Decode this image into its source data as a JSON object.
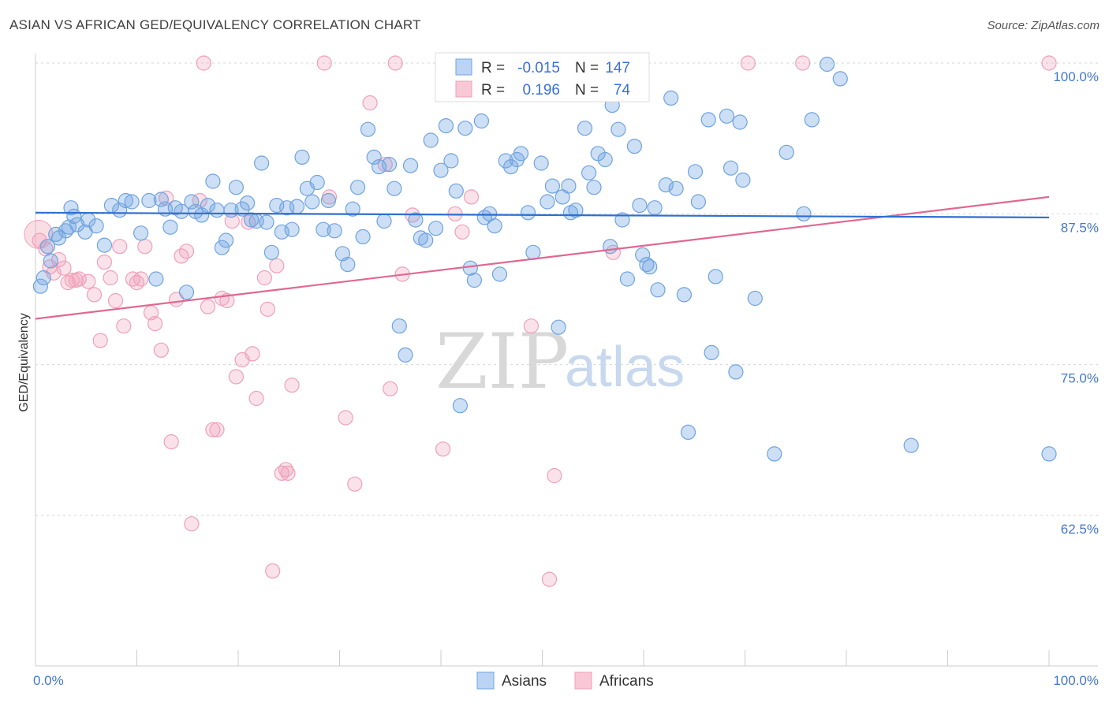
{
  "title": "ASIAN VS AFRICAN GED/EQUIVALENCY CORRELATION CHART",
  "source": "Source: ZipAtlas.com",
  "watermark": {
    "zip": "ZIP",
    "atlas": "atlas"
  },
  "chart_data": {
    "type": "scatter",
    "ylabel": "GED/Equivalency",
    "xlim": [
      0,
      100
    ],
    "ylim": [
      52,
      100.5
    ],
    "x_tick_labels": {
      "left": "0.0%",
      "right": "100.0%"
    },
    "y_ticks": [
      {
        "value": 100,
        "label": "100.0%"
      },
      {
        "value": 87.5,
        "label": "87.5%"
      },
      {
        "value": 75,
        "label": "75.0%"
      },
      {
        "value": 62.5,
        "label": "62.5%"
      }
    ],
    "legend": {
      "rows": [
        {
          "r_label": "R =",
          "r_value": "-0.015",
          "n_label": "N =",
          "n_value": "147"
        },
        {
          "r_label": "R =",
          "r_value": "0.196",
          "n_label": "N =",
          "n_value": "74"
        }
      ]
    },
    "colors": {
      "asians": "#6fa3e0",
      "africans": "#f0a0b8",
      "asians_line": "#2f6fd0",
      "africans_line": "#e06890"
    },
    "series": [
      {
        "name": "Asians",
        "trend": {
          "x": [
            0,
            100
          ],
          "y": [
            87.6,
            87.2
          ]
        },
        "points": [
          [
            0.5,
            81.5
          ],
          [
            0.8,
            82.2
          ],
          [
            1.2,
            84.8
          ],
          [
            1.5,
            83.6
          ],
          [
            2.0,
            85.8
          ],
          [
            2.3,
            85.5
          ],
          [
            3.0,
            86.1
          ],
          [
            3.3,
            86.4
          ],
          [
            3.5,
            88.0
          ],
          [
            3.8,
            87.3
          ],
          [
            4.1,
            86.6
          ],
          [
            4.9,
            86.0
          ],
          [
            5.2,
            87.0
          ],
          [
            6.0,
            86.5
          ],
          [
            6.8,
            84.9
          ],
          [
            7.5,
            88.2
          ],
          [
            8.3,
            87.8
          ],
          [
            8.9,
            88.6
          ],
          [
            9.5,
            88.5
          ],
          [
            10.4,
            85.9
          ],
          [
            11.2,
            88.6
          ],
          [
            11.9,
            82.1
          ],
          [
            12.4,
            88.7
          ],
          [
            12.8,
            87.9
          ],
          [
            13.3,
            86.4
          ],
          [
            13.8,
            88.0
          ],
          [
            14.4,
            87.7
          ],
          [
            14.9,
            81.0
          ],
          [
            15.4,
            88.5
          ],
          [
            15.8,
            87.7
          ],
          [
            16.4,
            87.4
          ],
          [
            17.0,
            88.2
          ],
          [
            17.5,
            90.2
          ],
          [
            17.9,
            87.8
          ],
          [
            18.4,
            84.7
          ],
          [
            18.8,
            85.3
          ],
          [
            19.3,
            87.8
          ],
          [
            19.8,
            89.7
          ],
          [
            20.4,
            87.9
          ],
          [
            20.9,
            88.4
          ],
          [
            21.3,
            87.0
          ],
          [
            21.8,
            86.9
          ],
          [
            22.3,
            91.7
          ],
          [
            22.8,
            86.8
          ],
          [
            23.3,
            84.3
          ],
          [
            23.8,
            88.2
          ],
          [
            24.3,
            86.0
          ],
          [
            24.8,
            88.0
          ],
          [
            25.3,
            86.2
          ],
          [
            25.8,
            88.1
          ],
          [
            26.3,
            92.2
          ],
          [
            26.8,
            89.6
          ],
          [
            27.3,
            88.5
          ],
          [
            27.8,
            90.1
          ],
          [
            28.4,
            86.2
          ],
          [
            28.9,
            88.6
          ],
          [
            29.5,
            86.1
          ],
          [
            30.3,
            84.2
          ],
          [
            30.8,
            83.3
          ],
          [
            31.3,
            87.9
          ],
          [
            31.8,
            89.7
          ],
          [
            32.3,
            85.6
          ],
          [
            32.8,
            94.5
          ],
          [
            33.4,
            92.2
          ],
          [
            33.9,
            91.4
          ],
          [
            34.4,
            86.9
          ],
          [
            34.9,
            91.6
          ],
          [
            35.4,
            89.6
          ],
          [
            35.9,
            78.2
          ],
          [
            36.5,
            75.8
          ],
          [
            37.0,
            91.5
          ],
          [
            37.5,
            87.0
          ],
          [
            38.0,
            85.5
          ],
          [
            38.5,
            85.3
          ],
          [
            39.0,
            93.6
          ],
          [
            39.5,
            86.3
          ],
          [
            40.0,
            91.1
          ],
          [
            40.5,
            94.8
          ],
          [
            41.0,
            91.9
          ],
          [
            41.5,
            89.4
          ],
          [
            41.9,
            71.6
          ],
          [
            42.4,
            94.6
          ],
          [
            42.9,
            83.0
          ],
          [
            43.3,
            82.0
          ],
          [
            44.0,
            95.2
          ],
          [
            44.3,
            87.2
          ],
          [
            44.8,
            87.5
          ],
          [
            45.3,
            86.5
          ],
          [
            45.8,
            82.5
          ],
          [
            46.4,
            91.9
          ],
          [
            46.9,
            91.4
          ],
          [
            47.5,
            92.0
          ],
          [
            47.9,
            92.5
          ],
          [
            48.6,
            87.6
          ],
          [
            49.1,
            84.3
          ],
          [
            49.9,
            91.7
          ],
          [
            50.5,
            88.5
          ],
          [
            51.0,
            89.8
          ],
          [
            51.6,
            78.1
          ],
          [
            52.0,
            88.9
          ],
          [
            52.6,
            89.8
          ],
          [
            52.8,
            87.6
          ],
          [
            53.3,
            87.8
          ],
          [
            54.2,
            94.6
          ],
          [
            54.6,
            90.9
          ],
          [
            55.1,
            89.7
          ],
          [
            55.5,
            92.5
          ],
          [
            56.2,
            92.0
          ],
          [
            56.7,
            84.8
          ],
          [
            56.9,
            96.5
          ],
          [
            57.5,
            94.5
          ],
          [
            57.9,
            87.0
          ],
          [
            58.4,
            82.1
          ],
          [
            59.1,
            93.1
          ],
          [
            59.6,
            88.2
          ],
          [
            59.9,
            84.1
          ],
          [
            60.3,
            83.3
          ],
          [
            60.6,
            83.1
          ],
          [
            61.1,
            88.0
          ],
          [
            61.4,
            81.2
          ],
          [
            62.2,
            89.9
          ],
          [
            62.7,
            97.1
          ],
          [
            63.2,
            89.6
          ],
          [
            64.0,
            80.8
          ],
          [
            64.4,
            69.4
          ],
          [
            65.1,
            91.0
          ],
          [
            65.4,
            88.5
          ],
          [
            66.4,
            95.3
          ],
          [
            66.7,
            76.0
          ],
          [
            67.1,
            82.3
          ],
          [
            68.2,
            95.6
          ],
          [
            68.6,
            91.3
          ],
          [
            69.1,
            74.4
          ],
          [
            69.5,
            95.1
          ],
          [
            69.8,
            90.3
          ],
          [
            71.0,
            80.5
          ],
          [
            72.9,
            67.6
          ],
          [
            74.1,
            92.6
          ],
          [
            75.8,
            87.5
          ],
          [
            76.6,
            95.3
          ],
          [
            78.1,
            99.9
          ],
          [
            79.4,
            98.7
          ],
          [
            86.4,
            68.3
          ],
          [
            100.0,
            67.6
          ]
        ]
      },
      {
        "name": "Africans",
        "trend": {
          "x": [
            0,
            100
          ],
          "y": [
            78.8,
            88.9
          ]
        },
        "points": [
          [
            0.4,
            85.3
          ],
          [
            1.0,
            84.6
          ],
          [
            1.4,
            83.1
          ],
          [
            1.8,
            82.6
          ],
          [
            2.3,
            83.7
          ],
          [
            2.8,
            83.0
          ],
          [
            3.2,
            81.8
          ],
          [
            3.6,
            82.0
          ],
          [
            4.0,
            82.0
          ],
          [
            4.3,
            82.1
          ],
          [
            5.2,
            81.9
          ],
          [
            5.8,
            80.8
          ],
          [
            6.4,
            77.0
          ],
          [
            6.8,
            83.5
          ],
          [
            7.4,
            82.2
          ],
          [
            7.9,
            80.3
          ],
          [
            8.3,
            84.8
          ],
          [
            8.7,
            78.2
          ],
          [
            9.6,
            82.1
          ],
          [
            10.0,
            81.8
          ],
          [
            10.4,
            82.1
          ],
          [
            10.8,
            84.8
          ],
          [
            11.4,
            79.3
          ],
          [
            11.8,
            78.4
          ],
          [
            12.4,
            76.2
          ],
          [
            12.9,
            88.8
          ],
          [
            13.4,
            68.6
          ],
          [
            13.9,
            80.4
          ],
          [
            14.4,
            84.0
          ],
          [
            14.9,
            84.4
          ],
          [
            15.4,
            61.8
          ],
          [
            16.2,
            88.6
          ],
          [
            16.6,
            100.0
          ],
          [
            17.0,
            79.8
          ],
          [
            17.5,
            69.6
          ],
          [
            17.9,
            69.6
          ],
          [
            18.4,
            80.5
          ],
          [
            18.9,
            80.3
          ],
          [
            19.4,
            86.9
          ],
          [
            19.8,
            74.0
          ],
          [
            20.4,
            75.4
          ],
          [
            21.0,
            86.8
          ],
          [
            21.4,
            75.9
          ],
          [
            21.8,
            72.2
          ],
          [
            22.6,
            82.2
          ],
          [
            22.9,
            79.6
          ],
          [
            23.4,
            57.9
          ],
          [
            23.8,
            83.2
          ],
          [
            24.3,
            66.0
          ],
          [
            24.7,
            66.3
          ],
          [
            24.9,
            66.0
          ],
          [
            25.3,
            73.3
          ],
          [
            28.5,
            100.0
          ],
          [
            29.0,
            88.9
          ],
          [
            30.6,
            70.6
          ],
          [
            31.5,
            65.1
          ],
          [
            33.0,
            96.7
          ],
          [
            34.5,
            91.6
          ],
          [
            35.0,
            73.0
          ],
          [
            35.5,
            100.0
          ],
          [
            36.2,
            82.5
          ],
          [
            37.2,
            87.4
          ],
          [
            40.2,
            68.0
          ],
          [
            41.4,
            87.5
          ],
          [
            42.1,
            86.0
          ],
          [
            43.0,
            88.9
          ],
          [
            47.0,
            100.0
          ],
          [
            48.9,
            78.2
          ],
          [
            50.7,
            57.2
          ],
          [
            51.2,
            65.8
          ],
          [
            57.0,
            84.3
          ],
          [
            70.3,
            100.0
          ],
          [
            75.7,
            100.0
          ],
          [
            100.0,
            100.0
          ]
        ]
      }
    ]
  }
}
